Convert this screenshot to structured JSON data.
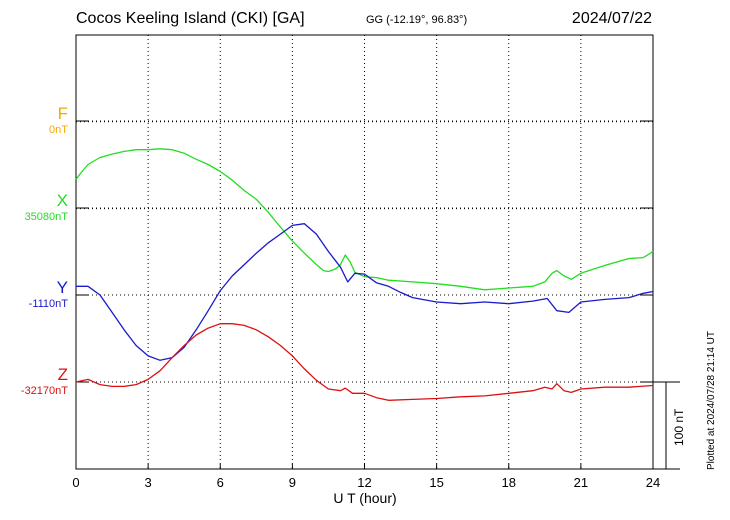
{
  "header": {
    "station": "Cocos Keeling Island (CKI)  [GA]",
    "coords": "GG (-12.19°,  96.83°)",
    "date": "2024/07/22"
  },
  "footer": {
    "plotted": "Plotted at 2024/07/28 21:14 UT"
  },
  "scale_bar": {
    "label": "100 nT",
    "nT": 100
  },
  "chart_data": {
    "type": "line",
    "xlabel": "U T (hour)",
    "xlim": [
      0,
      24
    ],
    "xticks": [
      0,
      3,
      6,
      9,
      12,
      15,
      18,
      21,
      24
    ],
    "grid": true,
    "nT_per_division": 100,
    "series": [
      {
        "name": "F",
        "baseline": 0,
        "baseline_label": "0nT",
        "color": "#f5a800",
        "x": [],
        "y": []
      },
      {
        "name": "X",
        "baseline": 35080,
        "baseline_label": "35080nT",
        "color": "#22dd22",
        "x": [
          0,
          0.25,
          0.5,
          1,
          1.5,
          2,
          2.5,
          3,
          3.5,
          4,
          4.5,
          5,
          5.5,
          6,
          6.5,
          7,
          7.5,
          8,
          8.5,
          9,
          9.5,
          10,
          10.3,
          10.5,
          10.8,
          11,
          11.2,
          11.4,
          11.6,
          12,
          12.5,
          13,
          14,
          15,
          16,
          17,
          18,
          19,
          19.5,
          19.8,
          20,
          20.3,
          20.6,
          21,
          22,
          23,
          23.6,
          24
        ],
        "y": [
          35113,
          35122,
          35130,
          35138,
          35142,
          35145,
          35147,
          35147,
          35148,
          35147,
          35143,
          35136,
          35130,
          35122,
          35112,
          35100,
          35090,
          35075,
          35058,
          35042,
          35028,
          35015,
          35008,
          35007,
          35010,
          35015,
          35026,
          35018,
          35006,
          35001,
          35000,
          34997,
          34995,
          34993,
          34990,
          34986,
          34988,
          34990,
          34995,
          35005,
          35008,
          35002,
          34998,
          35005,
          35014,
          35022,
          35023,
          35030
        ]
      },
      {
        "name": "Y",
        "baseline": -1110,
        "baseline_label": "-1110nT",
        "color": "#1a1acc",
        "x": [
          0,
          0.5,
          1,
          1.5,
          2,
          2.5,
          3,
          3.5,
          4,
          4.5,
          5,
          5.5,
          6,
          6.5,
          7,
          7.5,
          8,
          8.5,
          9,
          9.5,
          10,
          10.5,
          11,
          11.3,
          11.6,
          12,
          12.5,
          13,
          13.5,
          14,
          15,
          16,
          17,
          18,
          19,
          19.6,
          20,
          20.5,
          21,
          22,
          23,
          23.6,
          24
        ],
        "y": [
          -1100,
          -1100,
          -1110,
          -1130,
          -1150,
          -1168,
          -1180,
          -1185,
          -1182,
          -1170,
          -1150,
          -1128,
          -1105,
          -1088,
          -1075,
          -1062,
          -1050,
          -1040,
          -1030,
          -1028,
          -1040,
          -1060,
          -1078,
          -1095,
          -1085,
          -1086,
          -1096,
          -1100,
          -1107,
          -1113,
          -1118,
          -1120,
          -1118,
          -1120,
          -1117,
          -1114,
          -1128,
          -1130,
          -1118,
          -1115,
          -1113,
          -1108,
          -1106
        ]
      },
      {
        "name": "Z",
        "baseline": -32170,
        "baseline_label": "-32170nT",
        "color": "#dd1111",
        "x": [
          0,
          0.5,
          1,
          1.5,
          2,
          2.5,
          3,
          3.5,
          4,
          4.5,
          5,
          5.5,
          6,
          6.5,
          7,
          7.5,
          8,
          8.5,
          9,
          9.5,
          10,
          10.5,
          11,
          11.2,
          11.5,
          12,
          12.5,
          13,
          14,
          15,
          16,
          17,
          18,
          19,
          19.5,
          19.8,
          20,
          20.3,
          20.6,
          21,
          22,
          23,
          24
        ],
        "y": [
          -32170,
          -32167,
          -32173,
          -32175,
          -32175,
          -32173,
          -32167,
          -32157,
          -32142,
          -32128,
          -32116,
          -32108,
          -32103,
          -32103,
          -32105,
          -32110,
          -32118,
          -32128,
          -32140,
          -32155,
          -32168,
          -32178,
          -32180,
          -32177,
          -32183,
          -32183,
          -32188,
          -32191,
          -32190,
          -32189,
          -32187,
          -32186,
          -32183,
          -32180,
          -32176,
          -32178,
          -32172,
          -32180,
          -32182,
          -32178,
          -32176,
          -32176,
          -32174
        ]
      }
    ]
  }
}
